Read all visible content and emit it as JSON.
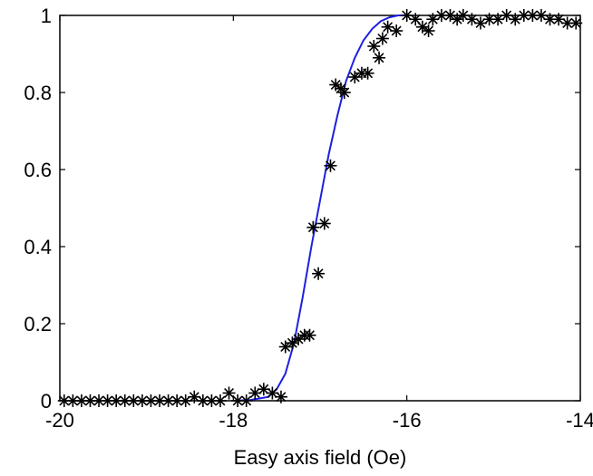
{
  "chart_data": {
    "type": "scatter",
    "title": "",
    "xlabel": "Easy axis field (Oe)",
    "ylabel": "",
    "xlim": [
      -20,
      -14
    ],
    "ylim": [
      0,
      1
    ],
    "grid": false,
    "x_ticks": [
      -20,
      -18,
      -16,
      -14
    ],
    "y_ticks": [
      0,
      0.2,
      0.4,
      0.6,
      0.8,
      1
    ],
    "x_tick_labels": [
      "-20",
      "-18",
      "-16",
      "-14"
    ],
    "y_tick_labels": [
      "0",
      "0.2",
      "0.4",
      "0.6",
      "0.8",
      "1"
    ],
    "series": [
      {
        "kind": "markers",
        "marker": "asterisk",
        "color": "#000000",
        "points": [
          {
            "x": -19.95,
            "y": 0
          },
          {
            "x": -19.85,
            "y": 0
          },
          {
            "x": -19.75,
            "y": 0
          },
          {
            "x": -19.65,
            "y": 0
          },
          {
            "x": -19.55,
            "y": 0
          },
          {
            "x": -19.45,
            "y": 0
          },
          {
            "x": -19.35,
            "y": 0
          },
          {
            "x": -19.25,
            "y": 0
          },
          {
            "x": -19.15,
            "y": 0
          },
          {
            "x": -19.05,
            "y": 0
          },
          {
            "x": -18.95,
            "y": 0
          },
          {
            "x": -18.85,
            "y": 0
          },
          {
            "x": -18.75,
            "y": 0
          },
          {
            "x": -18.65,
            "y": 0
          },
          {
            "x": -18.55,
            "y": 0
          },
          {
            "x": -18.45,
            "y": 0.01
          },
          {
            "x": -18.35,
            "y": 0
          },
          {
            "x": -18.25,
            "y": 0
          },
          {
            "x": -18.15,
            "y": 0
          },
          {
            "x": -18.05,
            "y": 0.02
          },
          {
            "x": -17.95,
            "y": 0
          },
          {
            "x": -17.85,
            "y": 0
          },
          {
            "x": -17.75,
            "y": 0.02
          },
          {
            "x": -17.65,
            "y": 0.03
          },
          {
            "x": -17.55,
            "y": 0.02
          },
          {
            "x": -17.45,
            "y": 0.01
          },
          {
            "x": -17.4,
            "y": 0.14
          },
          {
            "x": -17.32,
            "y": 0.15
          },
          {
            "x": -17.25,
            "y": 0.16
          },
          {
            "x": -17.18,
            "y": 0.17
          },
          {
            "x": -17.12,
            "y": 0.17
          },
          {
            "x": -17.08,
            "y": 0.45
          },
          {
            "x": -17.02,
            "y": 0.33
          },
          {
            "x": -16.95,
            "y": 0.46
          },
          {
            "x": -16.88,
            "y": 0.61
          },
          {
            "x": -16.82,
            "y": 0.82
          },
          {
            "x": -16.76,
            "y": 0.81
          },
          {
            "x": -16.72,
            "y": 0.8
          },
          {
            "x": -16.6,
            "y": 0.84
          },
          {
            "x": -16.52,
            "y": 0.85
          },
          {
            "x": -16.45,
            "y": 0.85
          },
          {
            "x": -16.38,
            "y": 0.92
          },
          {
            "x": -16.32,
            "y": 0.89
          },
          {
            "x": -16.28,
            "y": 0.94
          },
          {
            "x": -16.22,
            "y": 0.97
          },
          {
            "x": -16.12,
            "y": 0.96
          },
          {
            "x": -16.0,
            "y": 1.0
          },
          {
            "x": -15.9,
            "y": 0.99
          },
          {
            "x": -15.82,
            "y": 0.97
          },
          {
            "x": -15.75,
            "y": 0.96
          },
          {
            "x": -15.7,
            "y": 0.99
          },
          {
            "x": -15.6,
            "y": 1.0
          },
          {
            "x": -15.5,
            "y": 1.0
          },
          {
            "x": -15.42,
            "y": 0.99
          },
          {
            "x": -15.35,
            "y": 1.0
          },
          {
            "x": -15.25,
            "y": 0.99
          },
          {
            "x": -15.15,
            "y": 0.98
          },
          {
            "x": -15.05,
            "y": 0.99
          },
          {
            "x": -14.95,
            "y": 0.99
          },
          {
            "x": -14.85,
            "y": 1.0
          },
          {
            "x": -14.75,
            "y": 0.99
          },
          {
            "x": -14.65,
            "y": 1.0
          },
          {
            "x": -14.55,
            "y": 1.0
          },
          {
            "x": -14.45,
            "y": 1.0
          },
          {
            "x": -14.35,
            "y": 0.99
          },
          {
            "x": -14.25,
            "y": 0.99
          },
          {
            "x": -14.15,
            "y": 0.98
          },
          {
            "x": -14.05,
            "y": 0.98
          }
        ]
      },
      {
        "kind": "line",
        "color": "#1f1fe0",
        "points": [
          {
            "x": -18.0,
            "y": 0
          },
          {
            "x": -17.8,
            "y": 0.002
          },
          {
            "x": -17.6,
            "y": 0.01
          },
          {
            "x": -17.5,
            "y": 0.03
          },
          {
            "x": -17.4,
            "y": 0.07
          },
          {
            "x": -17.3,
            "y": 0.15
          },
          {
            "x": -17.2,
            "y": 0.27
          },
          {
            "x": -17.1,
            "y": 0.4
          },
          {
            "x": -17.0,
            "y": 0.52
          },
          {
            "x": -16.9,
            "y": 0.64
          },
          {
            "x": -16.8,
            "y": 0.74
          },
          {
            "x": -16.7,
            "y": 0.83
          },
          {
            "x": -16.6,
            "y": 0.89
          },
          {
            "x": -16.5,
            "y": 0.935
          },
          {
            "x": -16.4,
            "y": 0.965
          },
          {
            "x": -16.3,
            "y": 0.985
          },
          {
            "x": -16.2,
            "y": 0.995
          },
          {
            "x": -16.1,
            "y": 1.0
          },
          {
            "x": -16.0,
            "y": 1.0
          }
        ]
      }
    ]
  }
}
